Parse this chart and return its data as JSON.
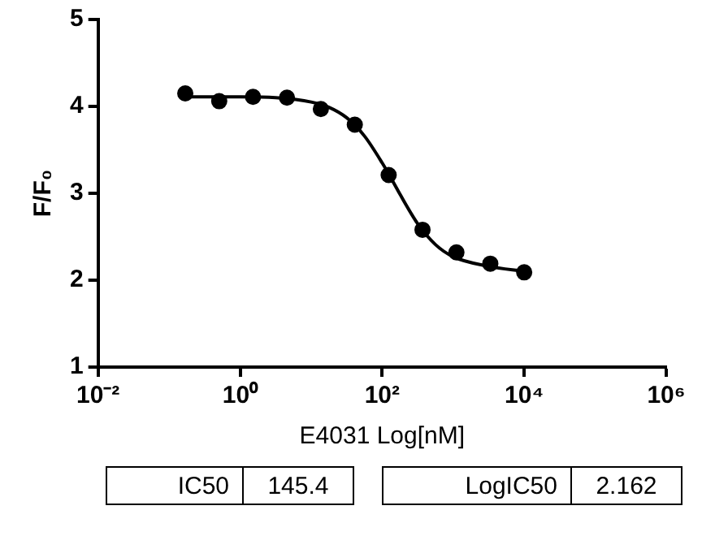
{
  "chart_data": {
    "type": "scatter",
    "xlabel": "E4031 Log[nM]",
    "ylabel": "F/F₀",
    "log": "x",
    "xlim": [
      0.01,
      1000000
    ],
    "xticks": [
      {
        "value": 0.01,
        "label": "10⁻²"
      },
      {
        "value": 1,
        "label": "10⁰"
      },
      {
        "value": 100,
        "label": "10²"
      },
      {
        "value": 10000,
        "label": "10⁴"
      },
      {
        "value": 1000000,
        "label": "10⁶"
      }
    ],
    "ylim": [
      1,
      5
    ],
    "yticks": [
      1,
      2,
      3,
      4,
      5
    ],
    "grid": false,
    "legend": false,
    "marker": "circle",
    "series": [
      {
        "type": "scatter",
        "color": "#000000",
        "x": [
          0.169,
          0.508,
          1.52,
          4.57,
          13.7,
          41.2,
          123.5,
          370,
          1111,
          3333,
          10000
        ],
        "values": [
          4.15,
          4.06,
          4.11,
          4.1,
          3.97,
          3.79,
          3.21,
          2.58,
          2.32,
          2.19,
          2.09
        ]
      },
      {
        "type": "line",
        "color": "#000000",
        "marker": "none",
        "x": [
          0.17,
          1,
          3.16,
          10,
          17.8,
          31.6,
          56.2,
          100,
          145.4,
          178,
          316,
          562,
          1000,
          3162,
          10000
        ],
        "values": [
          4.11,
          4.11,
          4.1,
          4.05,
          3.99,
          3.87,
          3.66,
          3.35,
          3.12,
          2.99,
          2.65,
          2.41,
          2.27,
          2.16,
          2.1
        ]
      }
    ],
    "annotations": [
      "IC50",
      "145.4",
      "LogIC50",
      "2.162"
    ]
  }
}
